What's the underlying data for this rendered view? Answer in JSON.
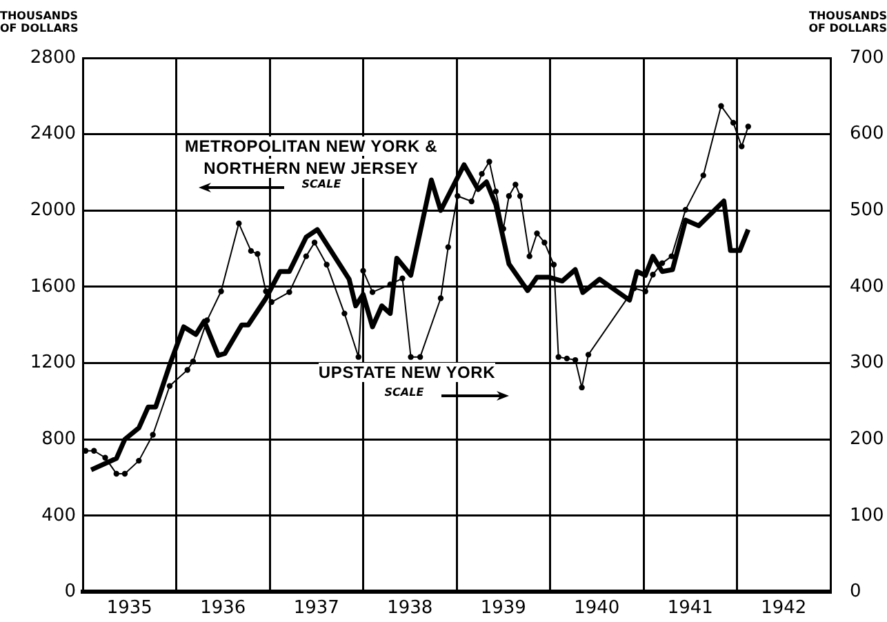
{
  "chart_data": {
    "type": "line",
    "ylabel": "THOUSANDS OF DOLLARS",
    "y2label": "THOUSANDS OF DOLLARS",
    "annotations": [
      "SCALE",
      "SCALE"
    ],
    "xlim": [
      1935,
      1943
    ],
    "xticks": [
      {
        "value": 1935,
        "label": null
      },
      {
        "value": 1935.5,
        "label": "1935"
      },
      {
        "value": 1936,
        "label": null
      },
      {
        "value": 1936.5,
        "label": "1936"
      },
      {
        "value": 1937,
        "label": null
      },
      {
        "value": 1937.5,
        "label": "1937"
      },
      {
        "value": 1938,
        "label": null
      },
      {
        "value": 1938.5,
        "label": "1938"
      },
      {
        "value": 1939,
        "label": null
      },
      {
        "value": 1939.5,
        "label": "1939"
      },
      {
        "value": 1940,
        "label": null
      },
      {
        "value": 1940.5,
        "label": "1940"
      },
      {
        "value": 1941,
        "label": null
      },
      {
        "value": 1941.5,
        "label": "1941"
      },
      {
        "value": 1942,
        "label": null
      },
      {
        "value": 1942.5,
        "label": "1942"
      },
      {
        "value": 1943,
        "label": null
      }
    ],
    "ylim": [
      0,
      2800
    ],
    "yticks": [
      0,
      400,
      800,
      1200,
      1600,
      2000,
      2400,
      2800
    ],
    "y2lim": [
      0,
      700
    ],
    "y2ticks": [
      0,
      100,
      200,
      300,
      400,
      500,
      600,
      700
    ],
    "grid": true,
    "legend": false,
    "line_style": "solid",
    "series": [
      {
        "name": "METROPOLITAN NEW YORK & NORTHERN NEW JERSEY",
        "color": "#000000",
        "marker": "none",
        "x": [
          1935.09,
          1935.36,
          1935.45,
          1935.6,
          1935.7,
          1935.78,
          1935.93,
          1936.08,
          1936.21,
          1936.3,
          1936.45,
          1936.52,
          1936.7,
          1936.77,
          1936.96,
          1937.11,
          1937.21,
          1937.39,
          1937.51,
          1937.85,
          1937.92,
          1938.0,
          1938.1,
          1938.2,
          1938.29,
          1938.36,
          1938.51,
          1938.73,
          1938.83,
          1939.08,
          1939.23,
          1939.32,
          1939.42,
          1939.56,
          1939.76,
          1939.86,
          1939.99,
          1940.13,
          1940.27,
          1940.35,
          1940.53,
          1940.85,
          1940.93,
          1941.02,
          1941.1,
          1941.2,
          1941.31,
          1941.45,
          1941.59,
          1941.86,
          1941.93,
          1942.03,
          1942.12
        ],
        "values": [
          640,
          700,
          800,
          860,
          970,
          970,
          1190,
          1390,
          1350,
          1420,
          1240,
          1250,
          1400,
          1400,
          1540,
          1680,
          1680,
          1860,
          1900,
          1640,
          1500,
          1560,
          1390,
          1500,
          1460,
          1750,
          1660,
          2160,
          2000,
          2240,
          2110,
          2150,
          2030,
          1720,
          1580,
          1650,
          1650,
          1630,
          1690,
          1570,
          1640,
          1530,
          1680,
          1660,
          1760,
          1680,
          1690,
          1950,
          1920,
          2050,
          1790,
          1790,
          1900
        ]
      },
      {
        "name": "UPSTATE NEW YORK",
        "color": "#000000",
        "axis": "y2",
        "marker": "circle",
        "x": [
          1935.03,
          1935.12,
          1935.24,
          1935.36,
          1935.45,
          1935.6,
          1935.75,
          1935.93,
          1936.12,
          1936.18,
          1936.33,
          1936.48,
          1936.67,
          1936.8,
          1936.87,
          1936.96,
          1937.02,
          1937.21,
          1937.39,
          1937.48,
          1937.61,
          1937.8,
          1937.95,
          1938.0,
          1938.1,
          1938.29,
          1938.42,
          1938.51,
          1938.61,
          1938.83,
          1938.91,
          1939.01,
          1939.16,
          1939.27,
          1939.35,
          1939.42,
          1939.5,
          1939.56,
          1939.63,
          1939.68,
          1939.78,
          1939.86,
          1939.94,
          1940.04,
          1940.09,
          1940.18,
          1940.27,
          1940.34,
          1940.41,
          1940.9,
          1941.02,
          1941.1,
          1941.2,
          1941.3,
          1941.45,
          1941.64,
          1941.83,
          1941.96,
          1942.05,
          1942.12
        ],
        "values": [
          185,
          185,
          176,
          155,
          155,
          172,
          206,
          270,
          291,
          302,
          356,
          394,
          483,
          447,
          443,
          394,
          380,
          393,
          440,
          458,
          429,
          365,
          308,
          421,
          393,
          403,
          411,
          308,
          308,
          385,
          452,
          519,
          512,
          548,
          564,
          525,
          476,
          519,
          534,
          519,
          440,
          470,
          458,
          429,
          308,
          306,
          304,
          268,
          311,
          398,
          394,
          416,
          431,
          440,
          501,
          546,
          637,
          615,
          584,
          610
        ]
      }
    ]
  }
}
